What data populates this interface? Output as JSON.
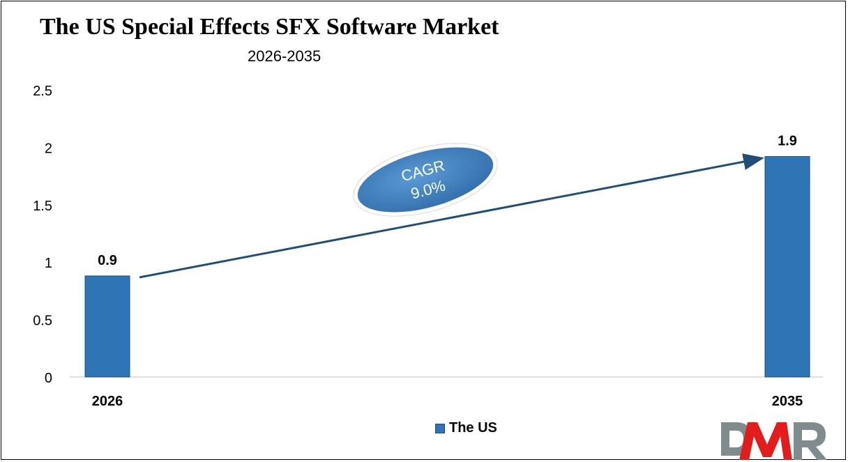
{
  "chart_data": {
    "type": "bar",
    "title": "The US Special Effects SFX Software Market",
    "subtitle": "2026-2035",
    "categories": [
      "2026",
      "2035"
    ],
    "series": [
      {
        "name": "The US",
        "values": [
          0.88,
          1.92
        ],
        "data_labels": [
          "0.9",
          "1.9"
        ]
      }
    ],
    "ylim": [
      0,
      2.5
    ],
    "yticks": [
      "0",
      "0.5",
      "1",
      "1.5",
      "2",
      "2.5"
    ],
    "grid": false,
    "legend": "bottom",
    "annotation": {
      "line1": "CAGR",
      "line2": "9.0%"
    },
    "colors": {
      "bar": "#2e75b6",
      "arrow": "#1f4e79",
      "ellipse": "#4a86c5"
    }
  },
  "logo": {
    "text": "DMR"
  }
}
